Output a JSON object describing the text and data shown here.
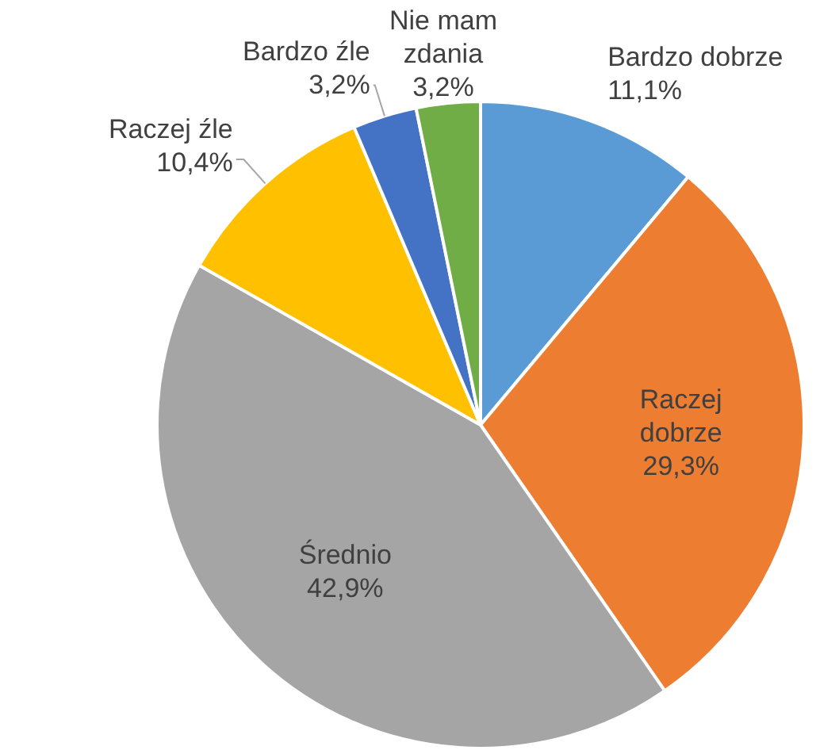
{
  "chart_data": {
    "type": "pie",
    "categories": [
      "Bardzo dobrze",
      "Raczej dobrze",
      "Średnio",
      "Raczej źle",
      "Bardzo źle",
      "Nie mam zdania"
    ],
    "values": [
      11.1,
      29.3,
      42.9,
      10.4,
      3.2,
      3.2
    ],
    "value_labels": [
      "11,1%",
      "29,3%",
      "42,9%",
      "10,4%",
      "3,2%",
      "3,2%"
    ],
    "colors": [
      "#5b9bd5",
      "#ed7d31",
      "#a5a5a5",
      "#ffc000",
      "#4472c4",
      "#70ad47"
    ],
    "legend": false
  }
}
